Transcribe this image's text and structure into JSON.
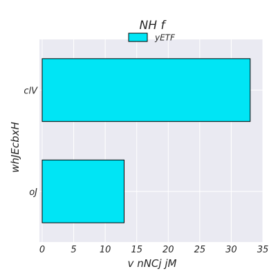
{
  "chart_data": {
    "type": "bar",
    "orientation": "horizontal",
    "title": "NH f",
    "xlabel": "v nNCj jM",
    "ylabel": "whJEcbxH",
    "categories": [
      "oJ",
      "clV"
    ],
    "series": [
      {
        "name": "yETF",
        "values": [
          13,
          33
        ],
        "color": "#00e5f5"
      }
    ],
    "xlim": [
      0,
      35
    ],
    "xticks": [
      0,
      5,
      10,
      15,
      20,
      25,
      30,
      35
    ],
    "grid": true,
    "legend": "top-center",
    "colors": {
      "plot_background": "#eaeaf2",
      "grid": "#ffffff",
      "bar_edge": "#000000"
    }
  }
}
